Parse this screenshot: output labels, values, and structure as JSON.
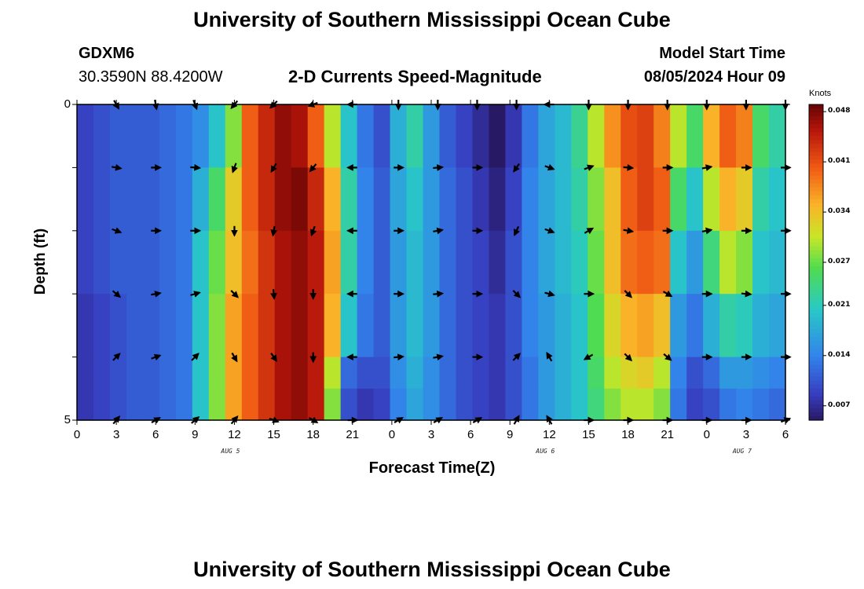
{
  "header": {
    "title": "University of Southern Mississippi Ocean Cube",
    "station": "GDXM6",
    "coords": "30.3590N  88.4200W",
    "subtitle": "2-D Currents Speed-Magnitude",
    "model_start_label": "Model Start Time",
    "model_start_value": "08/05/2024 Hour 09"
  },
  "footer": {
    "title": "University of Southern Mississippi Ocean Cube"
  },
  "chart_data": {
    "type": "heatmap",
    "title": "2-D Currents Speed-Magnitude",
    "xlabel": "Forecast Time(Z)",
    "ylabel": "Depth (ft)",
    "x_range_hours": [
      0,
      54
    ],
    "y_range_ft": [
      0,
      5
    ],
    "x_tick_labels": [
      "0",
      "3",
      "6",
      "9",
      "12",
      "15",
      "18",
      "21",
      "0",
      "3",
      "6",
      "9",
      "12",
      "15",
      "18",
      "21",
      "0",
      "3",
      "6"
    ],
    "y_tick_labels": [
      "0",
      "5"
    ],
    "date_labels": [
      {
        "label": "AUG 5",
        "hour": 12
      },
      {
        "label": "AUG 6",
        "hour": 36
      },
      {
        "label": "AUG 7",
        "hour": 51
      }
    ],
    "colorbar": {
      "unit": "Knots",
      "min": 0.005,
      "max": 0.049,
      "tick_labels": [
        "0.048",
        "0.041",
        "0.034",
        "0.027",
        "0.021",
        "0.014",
        "0.007"
      ],
      "tick_values": [
        0.048,
        0.041,
        0.034,
        0.027,
        0.021,
        0.014,
        0.007
      ]
    },
    "depth_layers": [
      {
        "depth": 0.5,
        "speed_profile": [
          0.009,
          0.01,
          0.011,
          0.011,
          0.011,
          0.012,
          0.013,
          0.015,
          0.02,
          0.028,
          0.04,
          0.044,
          0.047,
          0.046,
          0.04,
          0.03,
          0.02,
          0.013,
          0.01,
          0.018,
          0.022,
          0.016,
          0.011,
          0.009,
          0.007,
          0.005,
          0.008,
          0.013,
          0.017,
          0.019,
          0.023,
          0.03,
          0.037,
          0.041,
          0.042,
          0.038,
          0.03,
          0.025,
          0.035,
          0.04,
          0.038,
          0.025,
          0.022
        ]
      },
      {
        "depth": 1.5,
        "speed_profile": [
          0.009,
          0.01,
          0.011,
          0.011,
          0.011,
          0.012,
          0.013,
          0.018,
          0.025,
          0.033,
          0.04,
          0.044,
          0.047,
          0.048,
          0.044,
          0.035,
          0.022,
          0.014,
          0.011,
          0.017,
          0.02,
          0.016,
          0.012,
          0.01,
          0.008,
          0.006,
          0.009,
          0.014,
          0.017,
          0.019,
          0.022,
          0.028,
          0.034,
          0.04,
          0.042,
          0.04,
          0.025,
          0.02,
          0.03,
          0.035,
          0.033,
          0.022,
          0.02
        ]
      },
      {
        "depth": 2.5,
        "speed_profile": [
          0.009,
          0.01,
          0.011,
          0.011,
          0.011,
          0.012,
          0.013,
          0.02,
          0.027,
          0.034,
          0.039,
          0.043,
          0.046,
          0.047,
          0.045,
          0.036,
          0.022,
          0.014,
          0.011,
          0.016,
          0.019,
          0.016,
          0.012,
          0.01,
          0.009,
          0.007,
          0.01,
          0.014,
          0.017,
          0.019,
          0.021,
          0.027,
          0.034,
          0.039,
          0.04,
          0.039,
          0.02,
          0.016,
          0.024,
          0.03,
          0.028,
          0.02,
          0.019
        ]
      },
      {
        "depth": 3.5,
        "speed_profile": [
          0.008,
          0.009,
          0.01,
          0.011,
          0.011,
          0.012,
          0.013,
          0.02,
          0.028,
          0.036,
          0.04,
          0.043,
          0.046,
          0.047,
          0.045,
          0.035,
          0.02,
          0.013,
          0.011,
          0.016,
          0.019,
          0.016,
          0.012,
          0.01,
          0.009,
          0.008,
          0.01,
          0.014,
          0.016,
          0.018,
          0.02,
          0.026,
          0.032,
          0.035,
          0.036,
          0.034,
          0.016,
          0.013,
          0.018,
          0.022,
          0.021,
          0.018,
          0.017
        ]
      },
      {
        "depth": 4.5,
        "speed_profile": [
          0.008,
          0.009,
          0.01,
          0.011,
          0.011,
          0.012,
          0.013,
          0.02,
          0.028,
          0.036,
          0.04,
          0.043,
          0.046,
          0.047,
          0.045,
          0.03,
          0.012,
          0.01,
          0.01,
          0.015,
          0.018,
          0.015,
          0.012,
          0.01,
          0.009,
          0.008,
          0.01,
          0.013,
          0.016,
          0.018,
          0.02,
          0.025,
          0.03,
          0.032,
          0.033,
          0.03,
          0.014,
          0.01,
          0.012,
          0.016,
          0.016,
          0.015,
          0.014
        ]
      },
      {
        "depth": 5.0,
        "speed_profile": [
          0.008,
          0.009,
          0.01,
          0.011,
          0.011,
          0.012,
          0.013,
          0.02,
          0.028,
          0.036,
          0.04,
          0.043,
          0.046,
          0.047,
          0.045,
          0.028,
          0.01,
          0.008,
          0.009,
          0.014,
          0.017,
          0.015,
          0.012,
          0.01,
          0.009,
          0.008,
          0.01,
          0.013,
          0.016,
          0.018,
          0.02,
          0.024,
          0.028,
          0.03,
          0.03,
          0.028,
          0.013,
          0.009,
          0.01,
          0.013,
          0.014,
          0.013,
          0.012
        ]
      }
    ],
    "vectors": {
      "hours": [
        3,
        6,
        9,
        12,
        15,
        18,
        21,
        24.5,
        27.5,
        30.5,
        33.5,
        36,
        39,
        42,
        45,
        48,
        51,
        54
      ],
      "rows": [
        {
          "depth": 0,
          "dir_deg": [
            150,
            170,
            160,
            220,
            225,
            250,
            270,
            180,
            180,
            180,
            180,
            270,
            180,
            180,
            180,
            180,
            180,
            180
          ]
        },
        {
          "depth": 1,
          "dir_deg": [
            100,
            90,
            95,
            200,
            210,
            220,
            270,
            90,
            85,
            90,
            215,
            110,
            70,
            95,
            90,
            80,
            90,
            90
          ]
        },
        {
          "depth": 2,
          "dir_deg": [
            110,
            90,
            90,
            180,
            190,
            200,
            270,
            90,
            80,
            90,
            205,
            110,
            60,
            100,
            90,
            80,
            90,
            90
          ]
        },
        {
          "depth": 3,
          "dir_deg": [
            130,
            80,
            75,
            135,
            175,
            180,
            270,
            90,
            85,
            90,
            135,
            105,
            90,
            135,
            120,
            90,
            95,
            90
          ]
        },
        {
          "depth": 4,
          "dir_deg": [
            45,
            70,
            45,
            150,
            145,
            180,
            270,
            85,
            80,
            90,
            45,
            330,
            240,
            135,
            130,
            90,
            90,
            90
          ]
        },
        {
          "depth": 5,
          "dir_deg": [
            40,
            60,
            50,
            40,
            110,
            120,
            90,
            60,
            60,
            60,
            30,
            330,
            90,
            90,
            90,
            90,
            90,
            70
          ]
        }
      ]
    }
  }
}
